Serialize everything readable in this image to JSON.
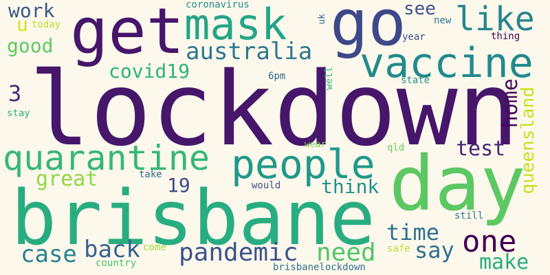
{
  "word_cloud": {
    "words": [
      {
        "text": "lockdown",
        "color": "#46166b"
      },
      {
        "text": "brisbane",
        "color": "#28ad80"
      },
      {
        "text": "day",
        "color": "#5cc863"
      },
      {
        "text": "get",
        "color": "#46166b"
      },
      {
        "text": "go",
        "color": "#3e4989"
      },
      {
        "text": "mask",
        "color": "#24a586"
      },
      {
        "text": "vaccine",
        "color": "#228a8d"
      },
      {
        "text": "people",
        "color": "#1f998a"
      },
      {
        "text": "quarantine",
        "color": "#35b779"
      },
      {
        "text": "like",
        "color": "#25858e"
      },
      {
        "text": "australia",
        "color": "#2a778e"
      },
      {
        "text": "one",
        "color": "#440154"
      },
      {
        "text": "pandemic",
        "color": "#3b528b"
      },
      {
        "text": "need",
        "color": "#51c569"
      },
      {
        "text": "back",
        "color": "#33638d"
      },
      {
        "text": "case",
        "color": "#26828e"
      },
      {
        "text": "time",
        "color": "#2c728e"
      },
      {
        "text": "say",
        "color": "#2d708e"
      },
      {
        "text": "make",
        "color": "#27ad81"
      },
      {
        "text": "test",
        "color": "#482475"
      },
      {
        "text": "think",
        "color": "#21918c"
      },
      {
        "text": "great",
        "color": "#8fd744"
      },
      {
        "text": "19",
        "color": "#3e4a89"
      },
      {
        "text": "covid19",
        "color": "#2db27d"
      },
      {
        "text": "good",
        "color": "#5ec962"
      },
      {
        "text": "work",
        "color": "#38588c"
      },
      {
        "text": "see",
        "color": "#3b528b"
      },
      {
        "text": "u",
        "color": "#d6e21a"
      },
      {
        "text": "3",
        "color": "#482878"
      },
      {
        "text": "home",
        "color": "#46085c"
      },
      {
        "text": "queensland",
        "color": "#c8e020"
      },
      {
        "text": "coronavirus",
        "color": "#228c8d"
      },
      {
        "text": "today",
        "color": "#b8de29"
      },
      {
        "text": "uk",
        "color": "#2f6c8e"
      },
      {
        "text": "new",
        "color": "#2a778e"
      },
      {
        "text": "year",
        "color": "#3b528b"
      },
      {
        "text": "thing",
        "color": "#440154"
      },
      {
        "text": "6pm",
        "color": "#31688e"
      },
      {
        "text": "well",
        "color": "#35b779"
      },
      {
        "text": "state",
        "color": "#21918c"
      },
      {
        "text": "stay",
        "color": "#2db27d"
      },
      {
        "text": "wear",
        "color": "#7ad151"
      },
      {
        "text": "qld",
        "color": "#6ece58"
      },
      {
        "text": "take",
        "color": "#31688e"
      },
      {
        "text": "would",
        "color": "#3b528b"
      },
      {
        "text": "still",
        "color": "#2a788e"
      },
      {
        "text": "come",
        "color": "#9fda3a"
      },
      {
        "text": "safe",
        "color": "#bddf26"
      },
      {
        "text": "country",
        "color": "#4ac16d"
      },
      {
        "text": "brisbanelockdown",
        "color": "#2c718e"
      }
    ]
  }
}
